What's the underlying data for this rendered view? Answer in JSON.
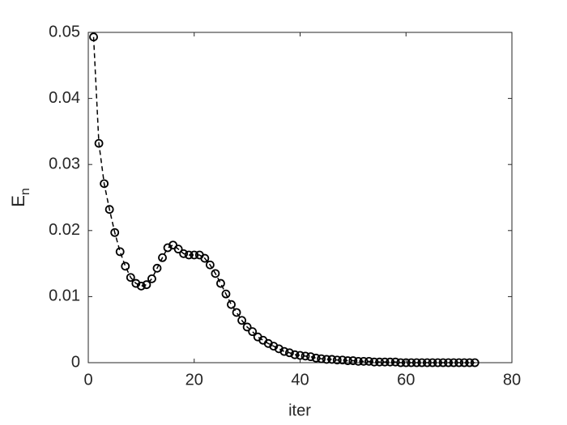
{
  "chart_data": {
    "type": "line",
    "xlabel": "iter",
    "ylabel": {
      "text": "E",
      "subscript": "n"
    },
    "x": [
      1,
      2,
      3,
      4,
      5,
      6,
      7,
      8,
      9,
      10,
      11,
      12,
      13,
      14,
      15,
      16,
      17,
      18,
      19,
      20,
      21,
      22,
      23,
      24,
      25,
      26,
      27,
      28,
      29,
      30,
      31,
      32,
      33,
      34,
      35,
      36,
      37,
      38,
      39,
      40,
      41,
      42,
      43,
      44,
      45,
      46,
      47,
      48,
      49,
      50,
      51,
      52,
      53,
      54,
      55,
      56,
      57,
      58,
      59,
      60,
      61,
      62,
      63,
      64,
      65,
      66,
      67,
      68,
      69,
      70,
      71,
      72,
      73
    ],
    "values": [
      0.0493,
      0.0332,
      0.0271,
      0.0232,
      0.0197,
      0.0168,
      0.0146,
      0.0129,
      0.012,
      0.0116,
      0.0118,
      0.0127,
      0.0143,
      0.0159,
      0.0174,
      0.0178,
      0.0172,
      0.0165,
      0.0163,
      0.0163,
      0.0163,
      0.0158,
      0.0148,
      0.0135,
      0.012,
      0.0104,
      0.0088,
      0.0076,
      0.0064,
      0.0054,
      0.0047,
      0.0039,
      0.0034,
      0.0029,
      0.0025,
      0.0021,
      0.0017,
      0.0015,
      0.0012,
      0.0011,
      0.001,
      0.0009,
      0.0007,
      0.0006,
      0.0005,
      0.0005,
      0.0004,
      0.0004,
      0.0003,
      0.0003,
      0.0002,
      0.0002,
      0.0002,
      0.0001,
      0.0001,
      0.0001,
      0.0001,
      0.0001,
      0,
      0,
      0,
      0,
      0,
      0,
      0,
      0,
      0,
      0,
      0,
      0,
      0,
      0,
      0
    ],
    "color": "#000000",
    "line_style": "dashed",
    "marker": "circle",
    "xlim": [
      0,
      80
    ],
    "xticks": [
      0,
      20,
      40,
      60,
      80
    ],
    "ylim": [
      0,
      0.05
    ],
    "yticks": [
      0,
      0.01,
      0.02,
      0.03,
      0.04,
      0.05
    ],
    "grid": false
  }
}
